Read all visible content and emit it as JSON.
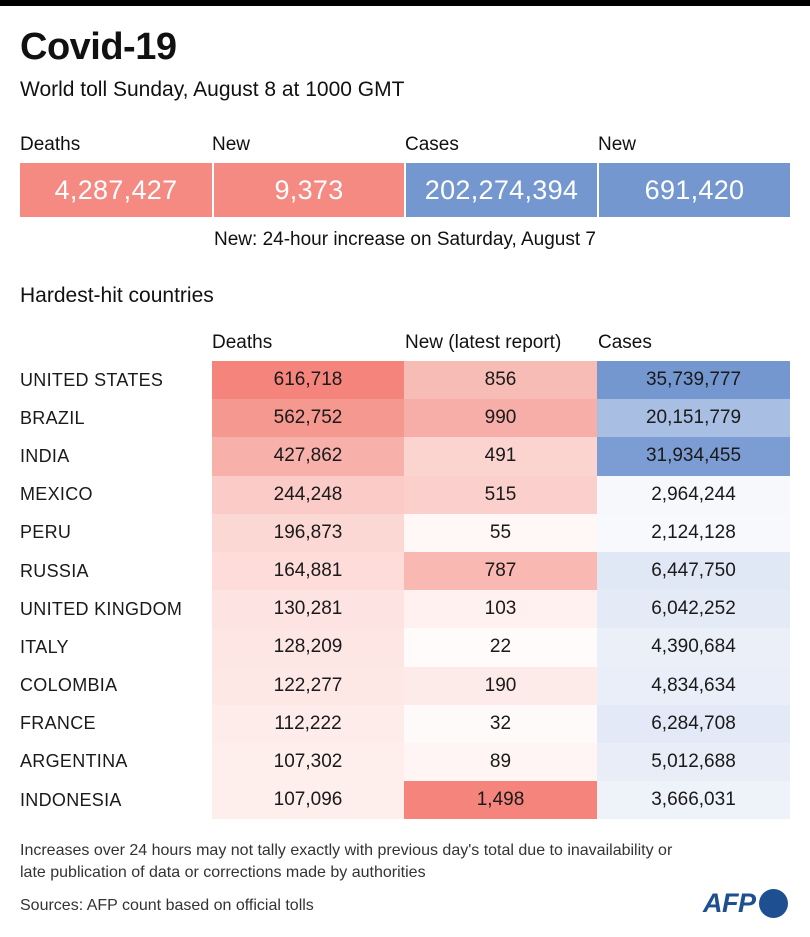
{
  "title": "Covid-19",
  "subtitle": "World toll Sunday, August 8 at 1000 GMT",
  "summary": {
    "labels": [
      "Deaths",
      "New",
      "Cases",
      "New"
    ],
    "values": [
      "4,287,427",
      "9,373",
      "202,274,394",
      "691,420"
    ],
    "colors": [
      "#f48a82",
      "#f48a82",
      "#7497d0",
      "#7497d0"
    ]
  },
  "note": "New: 24-hour increase on Saturday, August 7",
  "section_title": "Hardest-hit countries",
  "table": {
    "headers": [
      "Deaths",
      "New (latest report)",
      "Cases"
    ],
    "rows": [
      {
        "country": "UNITED STATES",
        "deaths": "616,718",
        "new": "856",
        "cases": "35,739,777",
        "deaths_bg": "#f4847c",
        "new_bg": "#f8bcb6",
        "cases_bg": "#7497d0"
      },
      {
        "country": "BRAZIL",
        "deaths": "562,752",
        "new": "990",
        "cases": "20,151,779",
        "deaths_bg": "#f59890",
        "new_bg": "#f7aea8",
        "cases_bg": "#a9bee3"
      },
      {
        "country": "INDIA",
        "deaths": "427,862",
        "new": "491",
        "cases": "31,934,455",
        "deaths_bg": "#f8b0aa",
        "new_bg": "#fbd4d0",
        "cases_bg": "#7c9dd3"
      },
      {
        "country": "MEXICO",
        "deaths": "244,248",
        "new": "515",
        "cases": "2,964,244",
        "deaths_bg": "#fbccc7",
        "new_bg": "#fbd0cc",
        "cases_bg": "#f6f8fc"
      },
      {
        "country": "PERU",
        "deaths": "196,873",
        "new": "55",
        "cases": "2,124,128",
        "deaths_bg": "#fcd8d4",
        "new_bg": "#fff8f7",
        "cases_bg": "#f8f9fd"
      },
      {
        "country": "RUSSIA",
        "deaths": "164,881",
        "new": "787",
        "cases": "6,447,750",
        "deaths_bg": "#fddcd9",
        "new_bg": "#f9b8b2",
        "cases_bg": "#e1e8f5"
      },
      {
        "country": "UNITED KINGDOM",
        "deaths": "130,281",
        "new": "103",
        "cases": "6,042,252",
        "deaths_bg": "#fde4e2",
        "new_bg": "#fef1ef",
        "cases_bg": "#e4eaf6"
      },
      {
        "country": "ITALY",
        "deaths": "128,209",
        "new": "22",
        "cases": "4,390,684",
        "deaths_bg": "#fde6e4",
        "new_bg": "#fffbfb",
        "cases_bg": "#ebf0f8"
      },
      {
        "country": "COLOMBIA",
        "deaths": "122,277",
        "new": "190",
        "cases": "4,834,634",
        "deaths_bg": "#fee8e6",
        "new_bg": "#fdebe9",
        "cases_bg": "#e9eef8"
      },
      {
        "country": "FRANCE",
        "deaths": "112,222",
        "new": "32",
        "cases": "6,284,708",
        "deaths_bg": "#feecea",
        "new_bg": "#fffafa",
        "cases_bg": "#e3e9f6"
      },
      {
        "country": "ARGENTINA",
        "deaths": "107,302",
        "new": "89",
        "cases": "5,012,688",
        "deaths_bg": "#feeeec",
        "new_bg": "#fff5f4",
        "cases_bg": "#e8edf7"
      },
      {
        "country": "INDONESIA",
        "deaths": "107,096",
        "new": "1,498",
        "cases": "3,666,031",
        "deaths_bg": "#feeeec",
        "new_bg": "#f4847c",
        "cases_bg": "#eef2f9"
      }
    ]
  },
  "footnote": "Increases over 24 hours may not tally exactly with previous day's total due to inavailability or late publication of data or corrections made by authorities",
  "sources": "Sources: AFP count based on official tolls",
  "logo": {
    "text": "AFP",
    "color": "#1d4f91"
  }
}
